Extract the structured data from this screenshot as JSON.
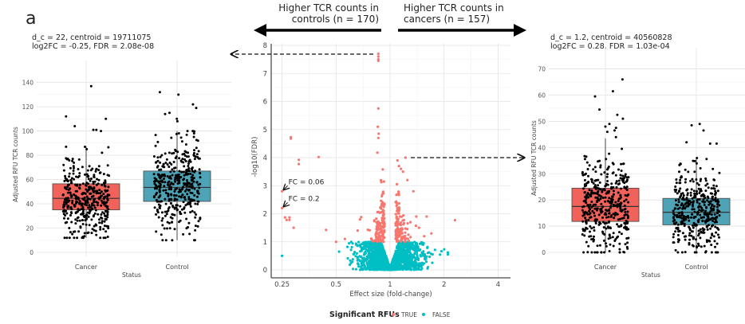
{
  "panel_label": "a",
  "direction_labels": {
    "left_line1": "Higher TCR counts in",
    "left_line2": "controls (n = 170)",
    "right_line1": "Higher TCR counts in",
    "right_line2": "cancers (n = 157)"
  },
  "legend": {
    "title": "Significant RFUs",
    "items": [
      {
        "label": "TRUE",
        "color": "#F8766D"
      },
      {
        "label": "FALSE",
        "color": "#00BFC4"
      }
    ]
  },
  "chart_data": [
    {
      "id": "left-boxplot",
      "type": "box",
      "title_line1": "d_c = 22, centroid = 19711075",
      "title_line2": "log2FC = -0.25, FDR = 2.08e-08",
      "xlabel": "Status",
      "ylabel": "Adjusted RFU TCR counts",
      "ylim": [
        0,
        145
      ],
      "yticks": [
        0,
        20,
        40,
        60,
        80,
        100,
        120,
        140
      ],
      "categories": [
        "Cancer",
        "Control"
      ],
      "boxes": [
        {
          "category": "Cancer",
          "q1": 35,
          "median": 44.5,
          "q3": 56.5,
          "whisker_low": 12,
          "whisker_high": 87,
          "fill": "#F0625A",
          "outliers": [
            137,
            112,
            110,
            104,
            101,
            101,
            100
          ]
        },
        {
          "category": "Control",
          "q1": 42,
          "median": 53.5,
          "q3": 67,
          "whisker_low": 10,
          "whisker_high": 100,
          "fill": "#4FA3B6",
          "outliers": [
            132,
            130,
            122,
            119,
            115,
            114,
            110,
            108
          ]
        }
      ],
      "n_points_per_group": 400
    },
    {
      "id": "volcano",
      "type": "scatter",
      "xlabel": "Effect size (fold-change)",
      "ylabel": "-log10(FDR)",
      "xscale": "log2",
      "xlim": [
        0.23,
        4.6
      ],
      "ylim": [
        -0.3,
        8.1
      ],
      "xticks": [
        0.25,
        0.5,
        1,
        2,
        4
      ],
      "xtick_labels": [
        "0.25",
        "0.5",
        "1",
        "2",
        "4"
      ],
      "yticks": [
        0,
        1,
        2,
        3,
        4,
        5,
        6,
        7,
        8
      ],
      "significance_threshold": 1,
      "annotations": [
        {
          "text": "FC = 0.06",
          "x": 0.25,
          "y": 2.8
        },
        {
          "text": "FC = 0.2",
          "x": 0.25,
          "y": 2.2
        }
      ],
      "highlighted_points": [
        {
          "x": 0.86,
          "y": 7.7,
          "label": "left panel"
        },
        {
          "x": 1.22,
          "y": 4.0,
          "label": "right panel"
        }
      ],
      "significant_points": [
        [
          0.86,
          7.7
        ],
        [
          0.86,
          7.6
        ],
        [
          0.86,
          7.5
        ],
        [
          0.86,
          7.45
        ],
        [
          0.86,
          5.75
        ],
        [
          0.855,
          5.1
        ],
        [
          0.865,
          4.85
        ],
        [
          0.86,
          4.7
        ],
        [
          0.85,
          4.18
        ],
        [
          0.28,
          4.73
        ],
        [
          0.28,
          4.68
        ],
        [
          0.31,
          3.92
        ],
        [
          0.31,
          3.77
        ],
        [
          0.4,
          4.02
        ],
        [
          0.25,
          2.8
        ],
        [
          0.25,
          2.2
        ],
        [
          0.26,
          1.87
        ],
        [
          0.265,
          1.78
        ],
        [
          0.275,
          1.78
        ],
        [
          0.275,
          1.87
        ],
        [
          0.29,
          1.5
        ],
        [
          0.44,
          1.42
        ],
        [
          0.5,
          1.0
        ],
        [
          0.56,
          1.1
        ],
        [
          0.66,
          1.4
        ],
        [
          0.68,
          1.8
        ],
        [
          0.69,
          1.88
        ],
        [
          1.22,
          4.0
        ],
        [
          1.1,
          3.9
        ],
        [
          1.12,
          3.7
        ],
        [
          1.25,
          3.2
        ],
        [
          1.35,
          2.8
        ],
        [
          1.6,
          1.9
        ],
        [
          2.3,
          1.77
        ],
        [
          1.15,
          3.6
        ],
        [
          1.18,
          3.5
        ],
        [
          1.4,
          1.9
        ],
        [
          1.45,
          1.5
        ],
        [
          1.7,
          1.3
        ],
        [
          1.55,
          1.2
        ],
        [
          1.3,
          1.7
        ]
      ],
      "nonsignificant_points_note": "dense cloud of ~2000 points, x 0.55-2.2, y 0-1",
      "nonsignificant_outliers": [
        [
          0.25,
          0.5
        ],
        [
          0.52,
          0.65
        ],
        [
          2.1,
          0.55
        ],
        [
          2.1,
          0.62
        ]
      ]
    },
    {
      "id": "right-boxplot",
      "type": "box",
      "title_line1": "d_c = 1.2, centroid = 40560828",
      "title_line2": "log2FC = 0.28, FDR = 1.03e-04",
      "xlabel": "Status",
      "ylabel": "Adjusted RFU TCR counts",
      "ylim": [
        0,
        72
      ],
      "yticks": [
        0,
        10,
        20,
        30,
        40,
        50,
        60,
        70
      ],
      "categories": [
        "Cancer",
        "Control"
      ],
      "boxes": [
        {
          "category": "Cancer",
          "q1": 11.8,
          "median": 17.5,
          "q3": 24.5,
          "whisker_low": 0,
          "whisker_high": 43.5,
          "fill": "#F0625A",
          "outliers": [
            66,
            61.5,
            59.5,
            54.5,
            52.5,
            51,
            49,
            48,
            47.5,
            46.5,
            46,
            44
          ]
        },
        {
          "category": "Control",
          "q1": 10.5,
          "median": 15.3,
          "q3": 20.6,
          "whisker_low": 0,
          "whisker_high": 36,
          "fill": "#4FA3B6",
          "outliers": [
            49,
            48.5,
            46.5,
            41.5,
            41.5,
            42
          ]
        }
      ],
      "n_points_per_group": 400
    }
  ]
}
